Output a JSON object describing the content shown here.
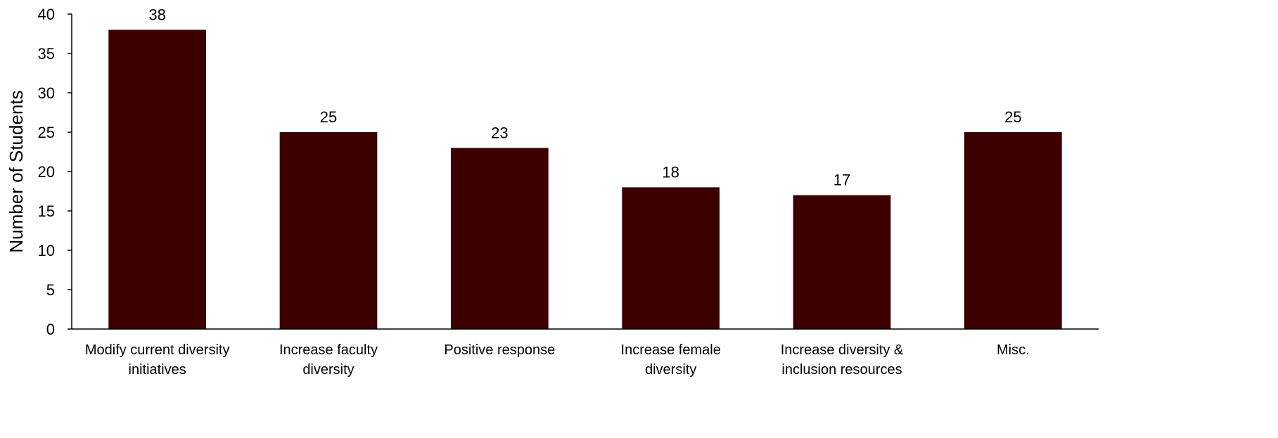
{
  "chart_data": {
    "type": "bar",
    "title": "",
    "xlabel": "",
    "ylabel": "Number of Students",
    "categories": [
      [
        "Modify current diversity",
        "initiatives"
      ],
      [
        "Increase faculty",
        "diversity"
      ],
      [
        "Positive response"
      ],
      [
        "Increase female",
        "diversity"
      ],
      [
        "Increase diversity &",
        "inclusion resources"
      ],
      [
        "Misc."
      ]
    ],
    "values": [
      38,
      25,
      23,
      18,
      17,
      25
    ],
    "data_labels": [
      "38",
      "25",
      "23",
      "18",
      "17",
      "25"
    ],
    "ylim": [
      0,
      40
    ],
    "yticks": [
      0,
      5,
      10,
      15,
      20,
      25,
      30,
      35,
      40
    ],
    "grid": false,
    "legend": "none",
    "bar_color": "#3d0000",
    "axis_color": "#000000"
  }
}
